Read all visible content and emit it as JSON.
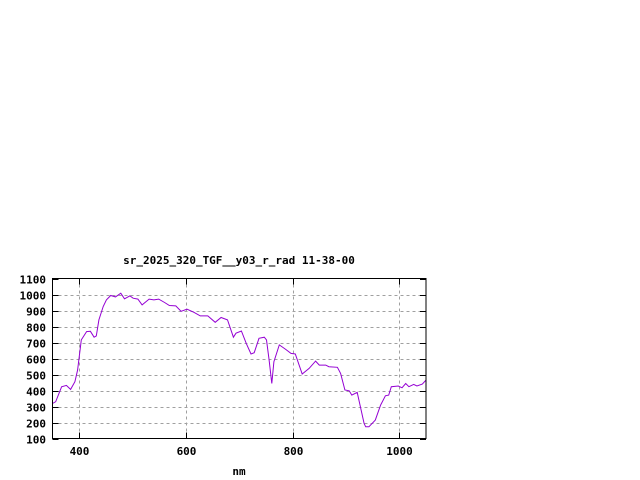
{
  "chart_data": {
    "type": "line",
    "title": "sr_2025_320_TGF__y03_r_rad 11-38-00",
    "xlabel": "nm",
    "ylabel": "",
    "xlim": [
      350,
      1050
    ],
    "ylim": [
      100,
      1100
    ],
    "xticks": [
      400,
      600,
      800,
      1000
    ],
    "yticks": [
      100,
      200,
      300,
      400,
      500,
      600,
      700,
      800,
      900,
      1000,
      1100
    ],
    "grid": true,
    "line_color": "#9400d3",
    "series": [
      {
        "x": [
          350,
          356,
          367,
          376,
          384,
          392,
          397,
          404,
          414,
          421,
          428,
          432,
          437,
          445,
          451,
          459,
          468,
          478,
          485,
          495,
          501,
          510,
          518,
          531,
          540,
          549,
          560,
          569,
          581,
          591,
          602,
          615,
          627,
          641,
          655,
          666,
          678,
          689,
          694,
          704,
          713,
          722,
          728,
          737,
          747,
          751,
          756,
          761,
          765,
          775,
          787,
          797,
          805,
          818,
          831,
          843,
          850,
          862,
          868,
          884,
          890,
          898,
          906,
          911,
          921,
          934,
          937,
          943,
          955,
          965,
          974,
          980,
          985,
          998,
          1005,
          1012,
          1018,
          1027,
          1033,
          1043,
          1050
        ],
        "y": [
          319,
          330,
          423,
          432,
          407,
          455,
          528,
          716,
          768,
          770,
          733,
          741,
          841,
          925,
          966,
          994,
          985,
          1008,
          973,
          991,
          977,
          971,
          935,
          971,
          966,
          971,
          950,
          931,
          929,
          895,
          908,
          889,
          866,
          866,
          826,
          856,
          841,
          733,
          758,
          772,
          695,
          628,
          636,
          726,
          733,
          716,
          591,
          444,
          580,
          685,
          657,
          632,
          628,
          503,
          538,
          584,
          559,
          559,
          549,
          545,
          507,
          403,
          398,
          371,
          388,
          194,
          173,
          173,
          215,
          309,
          367,
          371,
          424,
          428,
          417,
          444,
          424,
          438,
          428,
          440,
          465
        ]
      }
    ]
  }
}
